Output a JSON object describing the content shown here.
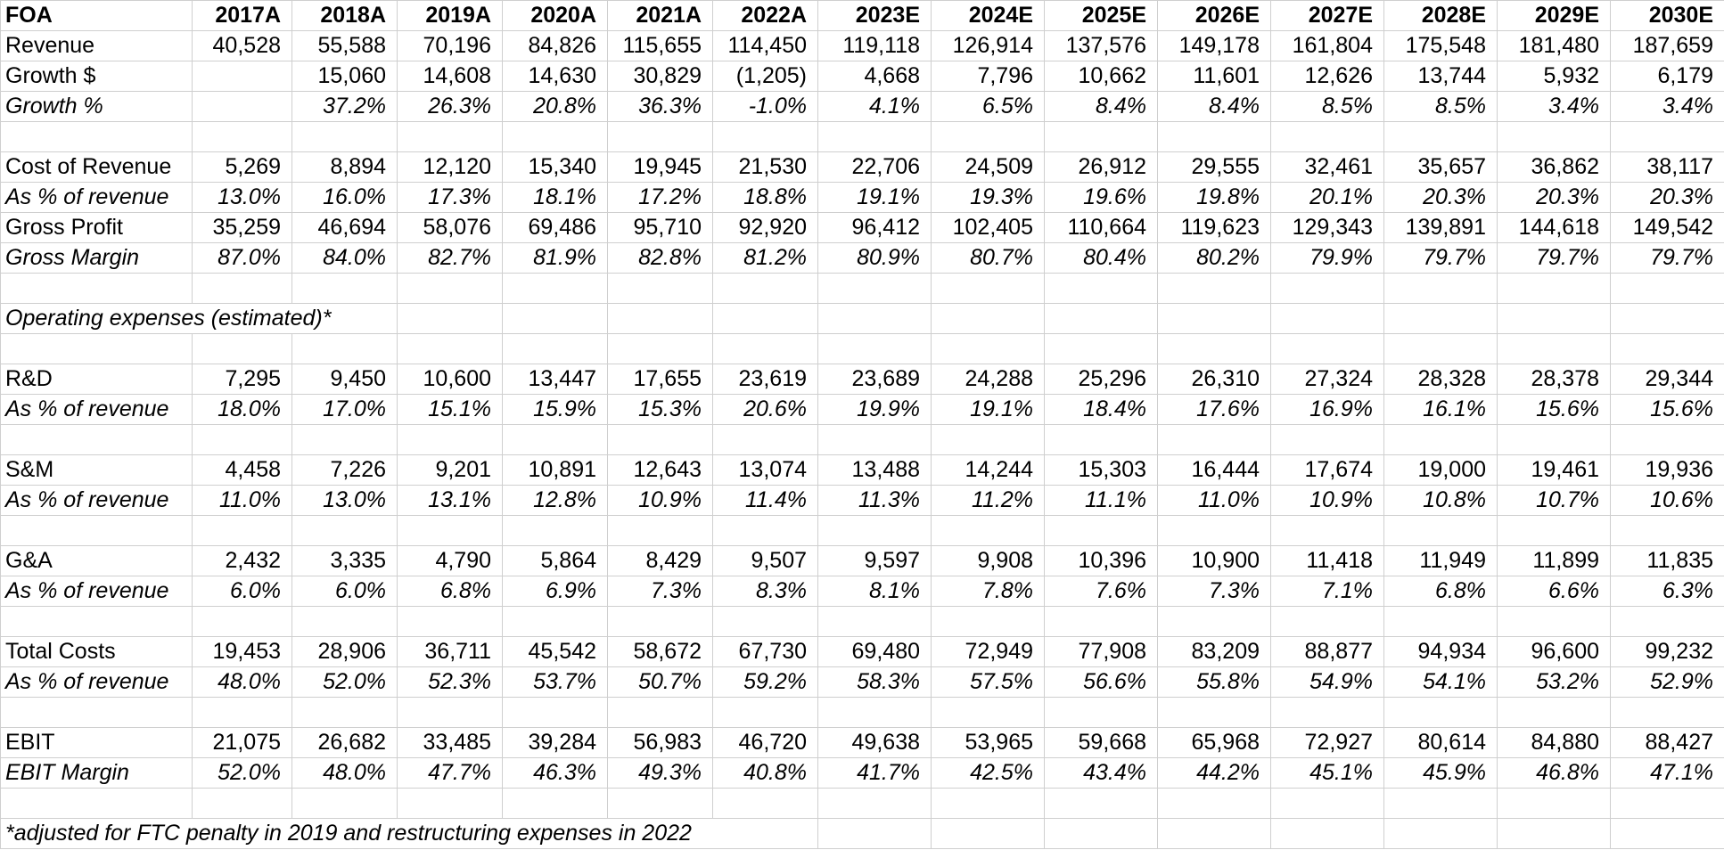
{
  "table": {
    "corner_label": "FOA",
    "columns": [
      "2017A",
      "2018A",
      "2019A",
      "2020A",
      "2021A",
      "2022A",
      "2023E",
      "2024E",
      "2025E",
      "2026E",
      "2027E",
      "2028E",
      "2029E",
      "2030E"
    ],
    "rows": [
      {
        "type": "data",
        "label": "Revenue",
        "italic": false,
        "values": [
          "40,528",
          "55,588",
          "70,196",
          "84,826",
          "115,655",
          "114,450",
          "119,118",
          "126,914",
          "137,576",
          "149,178",
          "161,804",
          "175,548",
          "181,480",
          "187,659"
        ]
      },
      {
        "type": "data",
        "label": "Growth $",
        "italic": false,
        "values": [
          "",
          "15,060",
          "14,608",
          "14,630",
          "30,829",
          "(1,205)",
          "4,668",
          "7,796",
          "10,662",
          "11,601",
          "12,626",
          "13,744",
          "5,932",
          "6,179"
        ]
      },
      {
        "type": "data",
        "label": "Growth %",
        "italic": true,
        "values": [
          "",
          "37.2%",
          "26.3%",
          "20.8%",
          "36.3%",
          "-1.0%",
          "4.1%",
          "6.5%",
          "8.4%",
          "8.4%",
          "8.5%",
          "8.5%",
          "3.4%",
          "3.4%"
        ]
      },
      {
        "type": "blank"
      },
      {
        "type": "data",
        "label": "Cost of Revenue",
        "italic": false,
        "values": [
          "5,269",
          "8,894",
          "12,120",
          "15,340",
          "19,945",
          "21,530",
          "22,706",
          "24,509",
          "26,912",
          "29,555",
          "32,461",
          "35,657",
          "36,862",
          "38,117"
        ]
      },
      {
        "type": "data",
        "label": "As % of revenue",
        "italic": true,
        "values": [
          "13.0%",
          "16.0%",
          "17.3%",
          "18.1%",
          "17.2%",
          "18.8%",
          "19.1%",
          "19.3%",
          "19.6%",
          "19.8%",
          "20.1%",
          "20.3%",
          "20.3%",
          "20.3%"
        ]
      },
      {
        "type": "data",
        "label": "Gross Profit",
        "italic": false,
        "values": [
          "35,259",
          "46,694",
          "58,076",
          "69,486",
          "95,710",
          "92,920",
          "96,412",
          "102,405",
          "110,664",
          "119,623",
          "129,343",
          "139,891",
          "144,618",
          "149,542"
        ]
      },
      {
        "type": "data",
        "label": "Gross Margin",
        "italic": true,
        "values": [
          "87.0%",
          "84.0%",
          "82.7%",
          "81.9%",
          "82.8%",
          "81.2%",
          "80.9%",
          "80.7%",
          "80.4%",
          "80.2%",
          "79.9%",
          "79.7%",
          "79.7%",
          "79.7%"
        ]
      },
      {
        "type": "blank"
      },
      {
        "type": "section",
        "label": "Operating expenses (estimated)*",
        "span": 3
      },
      {
        "type": "blank"
      },
      {
        "type": "data",
        "label": "R&D",
        "italic": false,
        "values": [
          "7,295",
          "9,450",
          "10,600",
          "13,447",
          "17,655",
          "23,619",
          "23,689",
          "24,288",
          "25,296",
          "26,310",
          "27,324",
          "28,328",
          "28,378",
          "29,344"
        ]
      },
      {
        "type": "data",
        "label": "As % of revenue",
        "italic": true,
        "values": [
          "18.0%",
          "17.0%",
          "15.1%",
          "15.9%",
          "15.3%",
          "20.6%",
          "19.9%",
          "19.1%",
          "18.4%",
          "17.6%",
          "16.9%",
          "16.1%",
          "15.6%",
          "15.6%"
        ]
      },
      {
        "type": "blank"
      },
      {
        "type": "data",
        "label": "S&M",
        "italic": false,
        "values": [
          "4,458",
          "7,226",
          "9,201",
          "10,891",
          "12,643",
          "13,074",
          "13,488",
          "14,244",
          "15,303",
          "16,444",
          "17,674",
          "19,000",
          "19,461",
          "19,936"
        ]
      },
      {
        "type": "data",
        "label": "As % of revenue",
        "italic": true,
        "values": [
          "11.0%",
          "13.0%",
          "13.1%",
          "12.8%",
          "10.9%",
          "11.4%",
          "11.3%",
          "11.2%",
          "11.1%",
          "11.0%",
          "10.9%",
          "10.8%",
          "10.7%",
          "10.6%"
        ]
      },
      {
        "type": "blank"
      },
      {
        "type": "data",
        "label": "G&A",
        "italic": false,
        "values": [
          "2,432",
          "3,335",
          "4,790",
          "5,864",
          "8,429",
          "9,507",
          "9,597",
          "9,908",
          "10,396",
          "10,900",
          "11,418",
          "11,949",
          "11,899",
          "11,835"
        ]
      },
      {
        "type": "data",
        "label": "As % of revenue",
        "italic": true,
        "values": [
          "6.0%",
          "6.0%",
          "6.8%",
          "6.9%",
          "7.3%",
          "8.3%",
          "8.1%",
          "7.8%",
          "7.6%",
          "7.3%",
          "7.1%",
          "6.8%",
          "6.6%",
          "6.3%"
        ]
      },
      {
        "type": "blank"
      },
      {
        "type": "data",
        "label": "Total Costs",
        "italic": false,
        "values": [
          "19,453",
          "28,906",
          "36,711",
          "45,542",
          "58,672",
          "67,730",
          "69,480",
          "72,949",
          "77,908",
          "83,209",
          "88,877",
          "94,934",
          "96,600",
          "99,232"
        ]
      },
      {
        "type": "data",
        "label": "As % of revenue",
        "italic": true,
        "values": [
          "48.0%",
          "52.0%",
          "52.3%",
          "53.7%",
          "50.7%",
          "59.2%",
          "58.3%",
          "57.5%",
          "56.6%",
          "55.8%",
          "54.9%",
          "54.1%",
          "53.2%",
          "52.9%"
        ]
      },
      {
        "type": "blank"
      },
      {
        "type": "data",
        "label": "EBIT",
        "italic": false,
        "values": [
          "21,075",
          "26,682",
          "33,485",
          "39,284",
          "56,983",
          "46,720",
          "49,638",
          "53,965",
          "59,668",
          "65,968",
          "72,927",
          "80,614",
          "84,880",
          "88,427"
        ]
      },
      {
        "type": "data",
        "label": "EBIT Margin",
        "italic": true,
        "values": [
          "52.0%",
          "48.0%",
          "47.7%",
          "46.3%",
          "49.3%",
          "40.8%",
          "41.7%",
          "42.5%",
          "43.4%",
          "44.2%",
          "45.1%",
          "45.9%",
          "46.8%",
          "47.1%"
        ]
      },
      {
        "type": "blank"
      },
      {
        "type": "footnote",
        "label": "*adjusted for FTC penalty in 2019 and restructuring expenses in 2022",
        "span": 7
      }
    ]
  },
  "colors": {
    "gridline": "#cfcfcf",
    "text": "#000000",
    "background": "#ffffff"
  }
}
